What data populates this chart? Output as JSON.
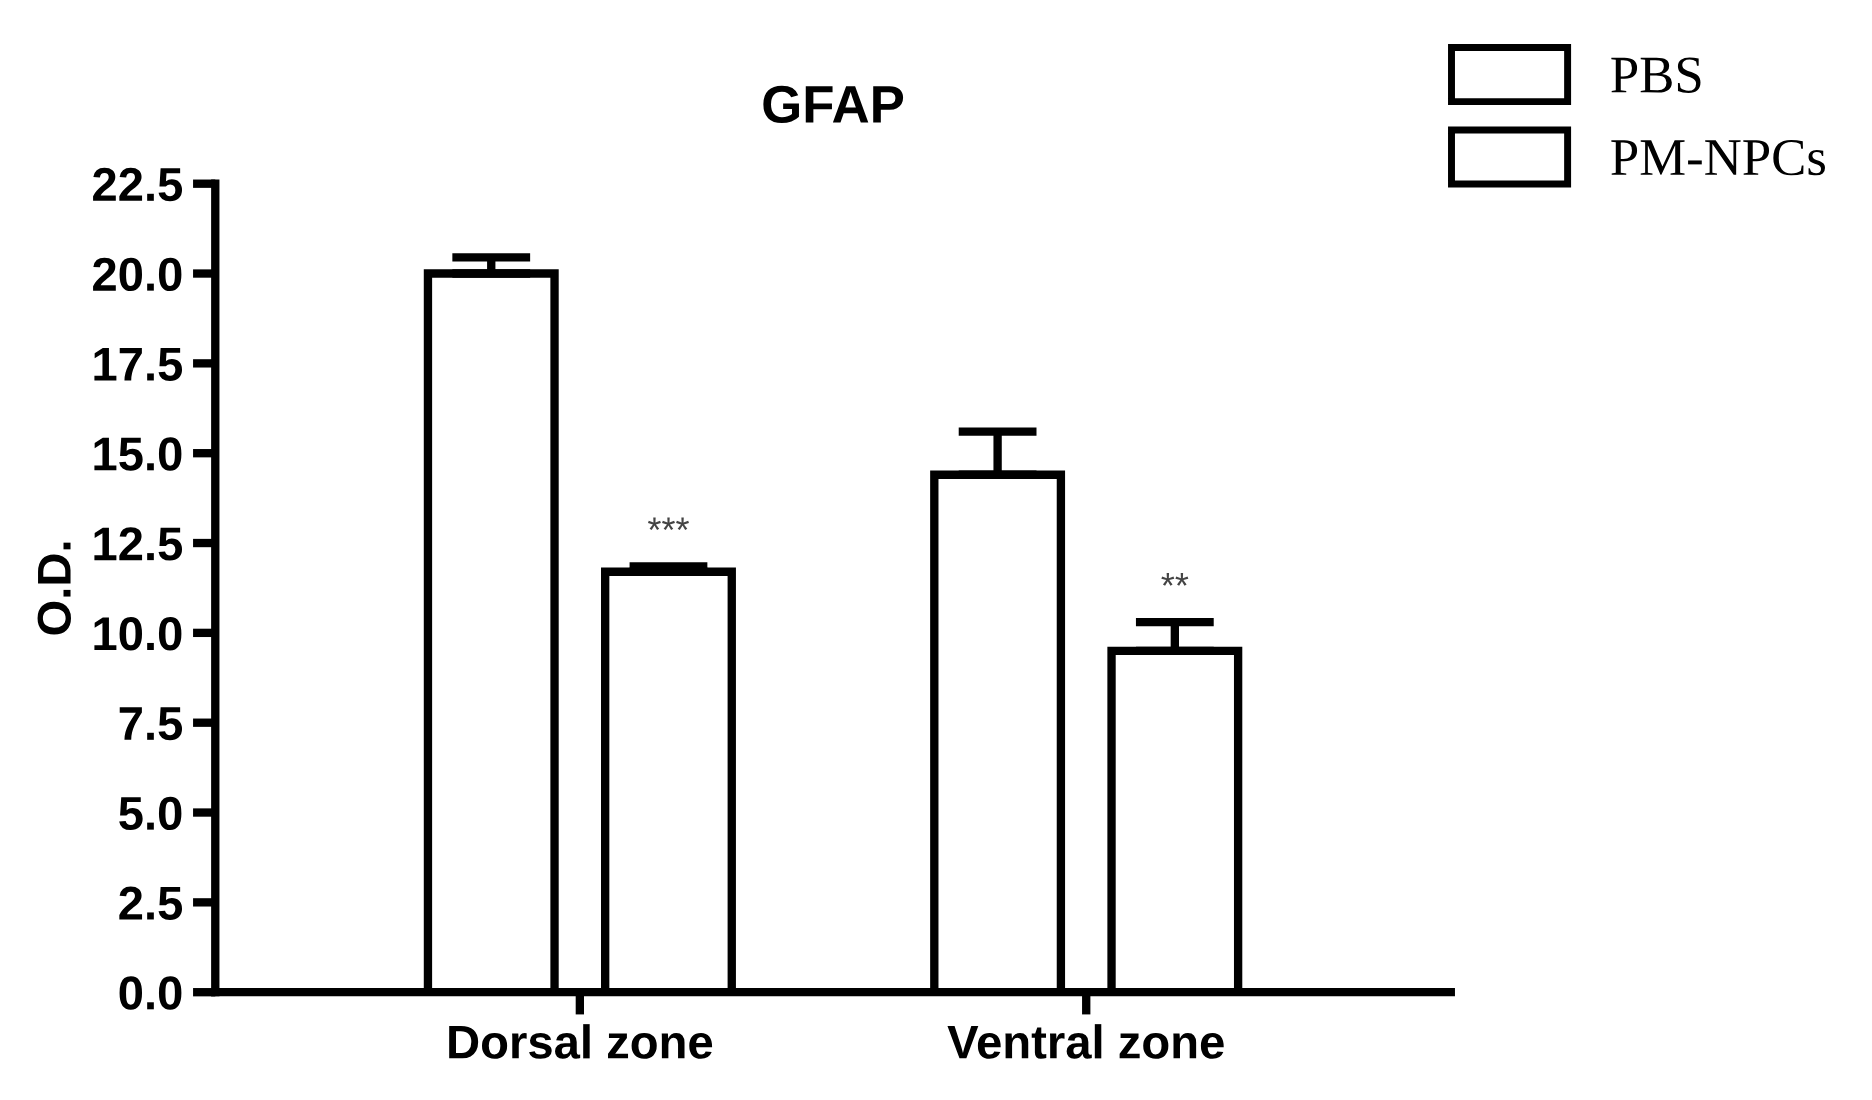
{
  "chart_data": {
    "type": "bar",
    "title": "GFAP",
    "ylabel": "O.D.",
    "categories": [
      "Dorsal zone",
      "Ventral zone"
    ],
    "series": [
      {
        "name": "PBS",
        "color": "#ffffff",
        "values": [
          20.0,
          14.4
        ],
        "errors": [
          0.45,
          1.2
        ]
      },
      {
        "name": "PM-NPCs",
        "color": "#ffffff",
        "values": [
          11.7,
          9.5
        ],
        "errors": [
          0.15,
          0.8
        ]
      }
    ],
    "ylim": [
      0,
      22.5
    ],
    "yticks": [
      {
        "value": 0,
        "label": "0.0"
      },
      2.5,
      {
        "value": 5,
        "label": "5.0"
      },
      7.5,
      {
        "value": 10,
        "label": "10.0"
      },
      12.5,
      {
        "value": 15,
        "label": "15.0"
      },
      17.5,
      {
        "value": 20,
        "label": "20.0"
      },
      22.5
    ],
    "annotations": [
      "***",
      "**"
    ],
    "grid": false,
    "legend": "top right"
  }
}
